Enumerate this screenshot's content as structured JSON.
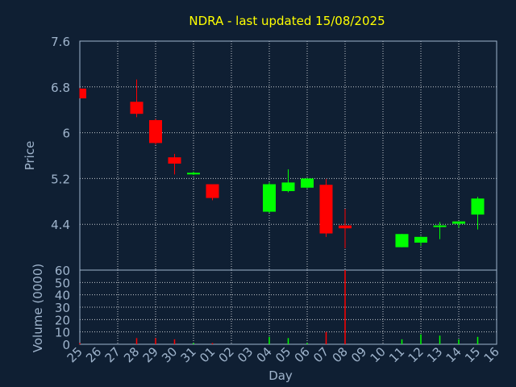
{
  "title": "NDRA - last updated 15/08/2025",
  "colors": {
    "background": "#0f1f33",
    "plot_background": "#0f1f33",
    "title": "#ffff00",
    "axis_text": "#9fb4cc",
    "grid": "#ffffff",
    "up": "#00ff00",
    "down": "#ff0000"
  },
  "chart_data": [
    {
      "type": "candlestick",
      "ylabel": "Price",
      "ylim": [
        3.6,
        7.6
      ],
      "y_ticks": [
        "7.6",
        "6.8",
        "6",
        "5.2",
        "4.4"
      ],
      "y_tick_values": [
        7.6,
        6.8,
        6.0,
        5.2,
        4.4
      ],
      "categories": [
        "25",
        "26",
        "27",
        "28",
        "29",
        "30",
        "31",
        "01",
        "02",
        "03",
        "04",
        "05",
        "06",
        "07",
        "08",
        "09",
        "10",
        "11",
        "12",
        "13",
        "14",
        "15",
        "16"
      ],
      "grid": true,
      "candles": [
        {
          "day": "25",
          "open": 6.77,
          "high": 6.78,
          "low": 6.6,
          "close": 6.6
        },
        {
          "day": "28",
          "open": 6.54,
          "high": 6.93,
          "low": 6.27,
          "close": 6.33
        },
        {
          "day": "29",
          "open": 6.22,
          "high": 6.24,
          "low": 5.79,
          "close": 5.82
        },
        {
          "day": "30",
          "open": 5.57,
          "high": 5.63,
          "low": 5.27,
          "close": 5.46
        },
        {
          "day": "31",
          "open": 5.28,
          "high": 5.32,
          "low": 5.26,
          "close": 5.3
        },
        {
          "day": "01",
          "open": 5.1,
          "high": 5.1,
          "low": 4.82,
          "close": 4.86
        },
        {
          "day": "04",
          "open": 4.62,
          "high": 5.13,
          "low": 4.6,
          "close": 5.1
        },
        {
          "day": "05",
          "open": 4.98,
          "high": 5.36,
          "low": 4.96,
          "close": 5.13
        },
        {
          "day": "06",
          "open": 5.04,
          "high": 5.21,
          "low": 5.03,
          "close": 5.2
        },
        {
          "day": "07",
          "open": 5.09,
          "high": 5.19,
          "low": 4.18,
          "close": 4.24
        },
        {
          "day": "08",
          "open": 4.38,
          "high": 4.67,
          "low": 3.98,
          "close": 4.33
        },
        {
          "day": "11",
          "open": 4.0,
          "high": 4.23,
          "low": 4.0,
          "close": 4.23
        },
        {
          "day": "12",
          "open": 4.08,
          "high": 4.19,
          "low": 4.02,
          "close": 4.18
        },
        {
          "day": "13",
          "open": 4.36,
          "high": 4.44,
          "low": 4.14,
          "close": 4.38
        },
        {
          "day": "14",
          "open": 4.41,
          "high": 4.45,
          "low": 4.34,
          "close": 4.45
        },
        {
          "day": "15",
          "open": 4.57,
          "high": 4.88,
          "low": 4.31,
          "close": 4.85
        }
      ]
    },
    {
      "type": "bar",
      "ylabel": "Volume (0000)",
      "xlabel": "Day",
      "ylim": [
        0,
        60
      ],
      "y_ticks": [
        "60",
        "50",
        "40",
        "30",
        "20",
        "10",
        "0"
      ],
      "y_tick_values": [
        60,
        50,
        40,
        30,
        20,
        10,
        0
      ],
      "categories": [
        "25",
        "26",
        "27",
        "28",
        "29",
        "30",
        "31",
        "01",
        "02",
        "03",
        "04",
        "05",
        "06",
        "07",
        "08",
        "09",
        "10",
        "11",
        "12",
        "13",
        "14",
        "15",
        "16"
      ],
      "values": [
        1,
        0,
        0,
        5,
        5,
        4,
        1,
        1,
        0,
        0,
        6,
        5,
        1,
        10,
        60,
        0,
        0,
        4,
        8,
        7,
        4,
        6,
        0
      ],
      "bar_direction": [
        "down",
        "",
        "",
        "down",
        "down",
        "down",
        "up",
        "down",
        "",
        "",
        "up",
        "up",
        "up",
        "down",
        "down",
        "",
        "",
        "up",
        "up",
        "up",
        "up",
        "up",
        ""
      ]
    }
  ]
}
